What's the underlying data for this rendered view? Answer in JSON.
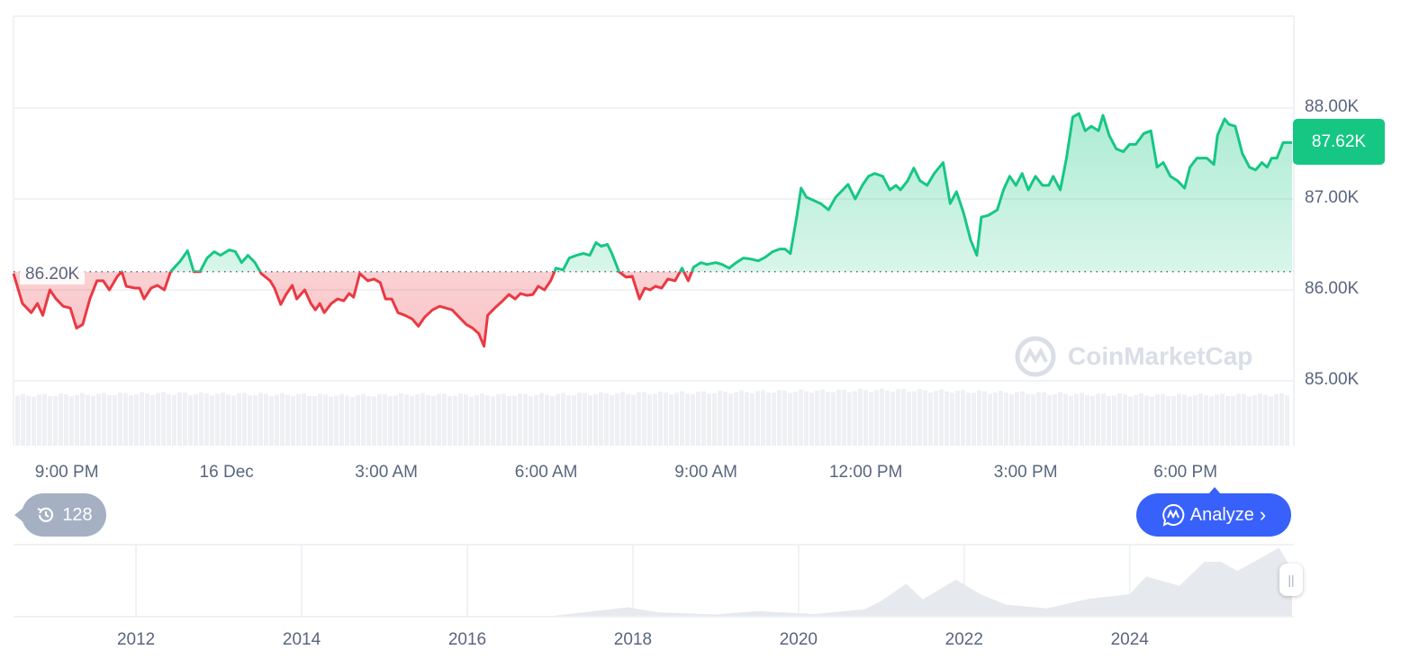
{
  "chart_data": {
    "type": "line",
    "title": "",
    "xlabel": "",
    "ylabel": "",
    "x_unit": "minutes since 8:00 PM (15 Dec)",
    "xlim": [
      0,
      1440
    ],
    "ylim": [
      84200,
      89000
    ],
    "y_ticks": [
      88000,
      87000,
      86000,
      85000
    ],
    "y_tick_labels": [
      "88.00K",
      "87.00K",
      "86.00K",
      "85.00K"
    ],
    "x_tick_minutes": [
      60,
      240,
      420,
      600,
      780,
      960,
      1140,
      1320
    ],
    "x_tick_labels": [
      "9:00 PM",
      "16 Dec",
      "3:00 AM",
      "6:00 AM",
      "9:00 AM",
      "12:00 PM",
      "3:00 PM",
      "6:00 PM"
    ],
    "reference_price": 86200,
    "reference_label": "86.20K",
    "last_price_label": "87.62K",
    "up_color": "#16c784",
    "down_color": "#ea3943",
    "grid": true,
    "minutes": [
      0,
      10,
      20,
      27,
      33,
      41,
      48,
      56,
      64,
      71,
      78,
      86,
      94,
      101,
      108,
      117,
      122,
      127,
      137,
      142,
      147,
      155,
      162,
      170,
      177,
      188,
      196,
      203,
      210,
      218,
      226,
      233,
      243,
      250,
      257,
      264,
      272,
      279,
      289,
      294,
      301,
      307,
      314,
      319,
      328,
      335,
      340,
      345,
      350,
      358,
      365,
      372,
      378,
      383,
      390,
      399,
      406,
      413,
      419,
      426,
      433,
      441,
      449,
      456,
      463,
      472,
      480,
      487,
      494,
      502,
      510,
      517,
      524,
      530,
      534,
      542,
      551,
      558,
      565,
      571,
      578,
      585,
      591,
      598,
      605,
      611,
      619,
      626,
      634,
      642,
      649,
      656,
      662,
      669,
      674,
      682,
      690,
      697,
      705,
      711,
      717,
      723,
      730,
      737,
      745,
      753,
      760,
      766,
      774,
      781,
      791,
      798,
      806,
      814,
      822,
      830,
      839,
      847,
      855,
      863,
      869,
      875,
      882,
      887,
      893,
      902,
      909,
      918,
      926,
      934,
      940,
      948,
      956,
      963,
      970,
      979,
      987,
      994,
      999,
      1007,
      1014,
      1021,
      1029,
      1037,
      1047,
      1055,
      1062,
      1070,
      1078,
      1085,
      1090,
      1098,
      1108,
      1115,
      1122,
      1129,
      1136,
      1143,
      1151,
      1159,
      1166,
      1171,
      1179,
      1186,
      1193,
      1200,
      1207,
      1214,
      1222,
      1227,
      1234,
      1242,
      1250,
      1257,
      1264,
      1273,
      1281,
      1288,
      1295,
      1303,
      1311,
      1319,
      1325,
      1333,
      1344,
      1352,
      1356,
      1364,
      1369,
      1376,
      1384,
      1392,
      1399,
      1406,
      1412,
      1417,
      1423,
      1430,
      1440
    ],
    "prices": [
      86180,
      85850,
      85750,
      85850,
      85720,
      86000,
      85900,
      85820,
      85800,
      85580,
      85620,
      85900,
      86100,
      86100,
      86000,
      86150,
      86200,
      86040,
      86020,
      86020,
      85900,
      86020,
      86050,
      86000,
      86200,
      86320,
      86430,
      86200,
      86200,
      86350,
      86420,
      86380,
      86440,
      86420,
      86300,
      86380,
      86300,
      86180,
      86100,
      86020,
      85840,
      85950,
      86050,
      85900,
      86000,
      85850,
      85780,
      85850,
      85750,
      85850,
      85900,
      85880,
      85960,
      85920,
      86180,
      86100,
      86120,
      86080,
      85900,
      85900,
      85750,
      85720,
      85680,
      85600,
      85700,
      85780,
      85820,
      85800,
      85780,
      85700,
      85620,
      85580,
      85520,
      85380,
      85720,
      85800,
      85880,
      85950,
      85900,
      85960,
      85940,
      85950,
      86040,
      86000,
      86100,
      86240,
      86220,
      86350,
      86380,
      86400,
      86380,
      86520,
      86480,
      86500,
      86400,
      86200,
      86140,
      86150,
      85900,
      86020,
      86000,
      86040,
      86020,
      86120,
      86100,
      86240,
      86100,
      86250,
      86300,
      86280,
      86300,
      86280,
      86240,
      86300,
      86350,
      86340,
      86320,
      86360,
      86420,
      86450,
      86450,
      86400,
      86800,
      87120,
      87020,
      86980,
      86950,
      86880,
      87020,
      87100,
      87160,
      87000,
      87150,
      87250,
      87280,
      87250,
      87100,
      87150,
      87100,
      87200,
      87340,
      87200,
      87150,
      87280,
      87400,
      86950,
      87080,
      86850,
      86550,
      86380,
      86800,
      86820,
      86880,
      87100,
      87250,
      87150,
      87280,
      87100,
      87250,
      87150,
      87150,
      87250,
      87100,
      87450,
      87900,
      87940,
      87750,
      87800,
      87750,
      87920,
      87700,
      87550,
      87520,
      87600,
      87600,
      87720,
      87750,
      87350,
      87400,
      87250,
      87200,
      87120,
      87350,
      87450,
      87450,
      87380,
      87700,
      87880,
      87820,
      87800,
      87500,
      87350,
      87320,
      87400,
      87350,
      87450,
      87450,
      87620,
      87620
    ],
    "volume_relative": [
      0.88,
      0.9,
      0.92,
      0.91,
      0.9,
      0.88,
      0.9,
      0.89,
      0.9,
      0.92,
      0.93,
      0.95,
      0.96,
      0.98,
      0.96,
      0.93,
      0.9,
      0.89,
      0.89,
      0.9
    ],
    "navigator": {
      "type": "area",
      "xlim": [
        2010.52,
        2025.96
      ],
      "x_tick_labels": [
        "2012",
        "2014",
        "2016",
        "2018",
        "2020",
        "2022",
        "2024"
      ],
      "x_ticks": [
        2012,
        2014,
        2016,
        2018,
        2020,
        2022,
        2024
      ],
      "ylim": [
        0,
        130000
      ],
      "years": [
        2010.52,
        2013.0,
        2013.9,
        2014.5,
        2017.0,
        2017.95,
        2018.3,
        2019.0,
        2019.5,
        2020.2,
        2020.8,
        2021.0,
        2021.3,
        2021.5,
        2021.9,
        2022.2,
        2022.5,
        2023.0,
        2023.5,
        2024.0,
        2024.2,
        2024.6,
        2024.9,
        2025.1,
        2025.3,
        2025.6,
        2025.8,
        2025.96
      ],
      "prices": [
        0,
        100,
        1000,
        500,
        1000,
        17000,
        8000,
        4000,
        10000,
        6000,
        12000,
        30000,
        58000,
        33000,
        65000,
        42000,
        20000,
        17000,
        30000,
        43000,
        70000,
        58000,
        96000,
        102000,
        80000,
        110000,
        122000,
        88000
      ]
    }
  },
  "history_badge": {
    "count": "128"
  },
  "analyze_button": {
    "label": "Analyze"
  },
  "watermark": {
    "text": "CoinMarketCap"
  }
}
